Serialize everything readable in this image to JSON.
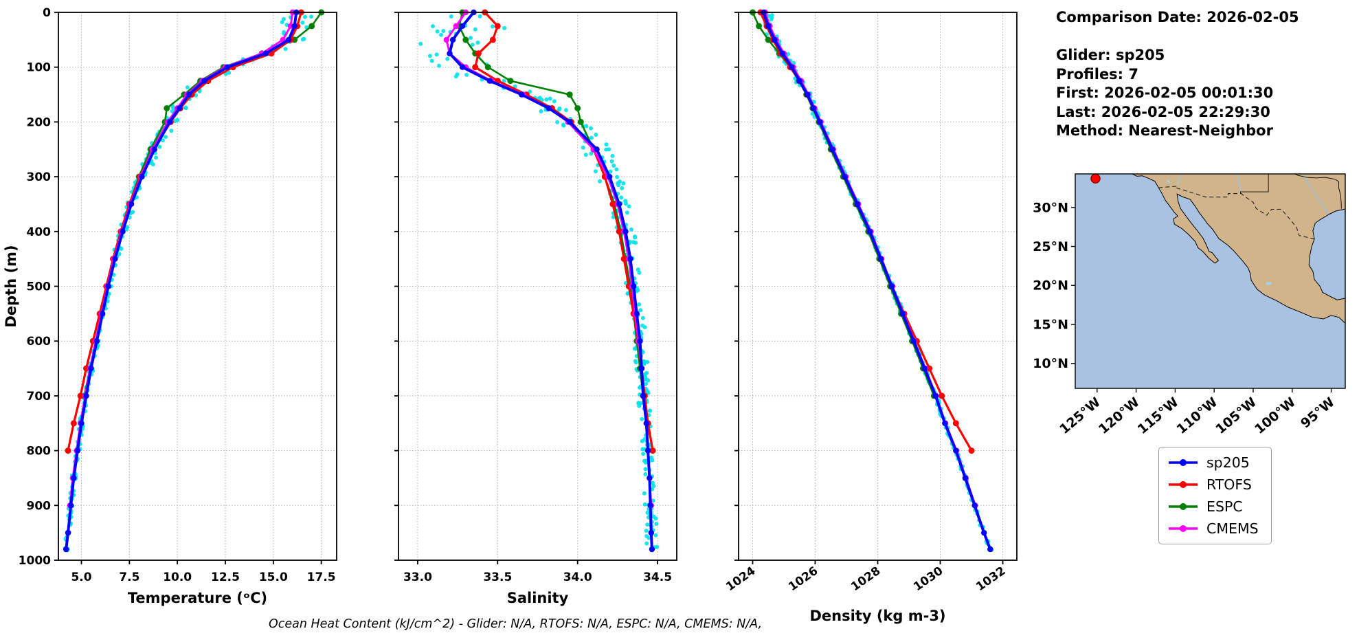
{
  "info_panel": {
    "lines": [
      "Comparison Date: 2026-02-05",
      "",
      "Glider: sp205",
      "Profiles: 7",
      "First: 2026-02-05 00:01:30",
      "Last: 2026-02-05 22:29:30",
      "Method: Nearest-Neighbor"
    ]
  },
  "caption": "Ocean Heat Content (kJ/cm^2) - Glider: N/A,  RTOFS: N/A,  ESPC: N/A,  CMEMS: N/A,",
  "legend": {
    "entries": [
      {
        "label": "sp205",
        "color": "#0000ff"
      },
      {
        "label": "RTOFS",
        "color": "#ff0000"
      },
      {
        "label": "ESPC",
        "color": "#008000"
      },
      {
        "label": "CMEMS",
        "color": "#ff00ff"
      }
    ]
  },
  "depth_axis": {
    "label": "Depth (m)",
    "min": 0,
    "max": 1000,
    "ticks": [
      0,
      100,
      200,
      300,
      400,
      500,
      600,
      700,
      800,
      900,
      1000
    ]
  },
  "depths": [
    0,
    25,
    50,
    75,
    100,
    125,
    150,
    175,
    200,
    250,
    300,
    350,
    400,
    450,
    500,
    550,
    600,
    650,
    700,
    750,
    800,
    850,
    900,
    950,
    980
  ],
  "chart_data": [
    {
      "type": "line",
      "xlabel": "Temperature (ᵒC)",
      "ylabel": "Depth (m)",
      "xlim": [
        3.8,
        18.3
      ],
      "ylim": [
        0,
        1000
      ],
      "grid": true,
      "xticks": [
        5.0,
        7.5,
        10.0,
        12.5,
        15.0,
        17.5
      ],
      "xtick_labels": [
        "5.0",
        "7.5",
        "10.0",
        "12.5",
        "15.0",
        "17.5"
      ],
      "rotate_xticks": false,
      "scatter": {
        "name": "sp205-raw",
        "color": "#00e1ea",
        "amp_surface": 0.9,
        "amp_deep": 0.1,
        "decay": 180
      },
      "series": [
        {
          "name": "ESPC",
          "color": "#008000",
          "lw": 2.6,
          "ms": 4.5,
          "values": [
            17.5,
            17.0,
            16.1,
            14.4,
            12.4,
            11.2,
            10.35,
            9.45,
            9.35,
            8.6,
            8.0,
            7.5,
            7.1,
            6.7,
            6.35,
            6.05,
            5.75,
            5.45,
            5.15,
            null,
            null,
            null,
            null,
            null,
            null
          ]
        },
        {
          "name": "RTOFS",
          "color": "#ff0000",
          "lw": 3.2,
          "ms": 4.5,
          "values": [
            16.45,
            16.25,
            15.9,
            14.9,
            12.9,
            11.6,
            10.75,
            10.15,
            9.65,
            8.75,
            8.05,
            7.5,
            7.05,
            6.65,
            6.3,
            5.95,
            5.6,
            5.25,
            4.95,
            4.6,
            4.3,
            null,
            null,
            null,
            null
          ]
        },
        {
          "name": "CMEMS",
          "color": "#ff00ff",
          "lw": 3.0,
          "ms": 4.2,
          "values": [
            16.0,
            15.9,
            15.5,
            14.4,
            12.5,
            11.3,
            10.5,
            10.0,
            9.5,
            8.7,
            8.1,
            7.55,
            7.1,
            6.7,
            6.35,
            6.05,
            5.75,
            5.45,
            5.2,
            4.95,
            4.75,
            4.55,
            4.4,
            null,
            null
          ]
        },
        {
          "name": "sp205",
          "color": "#0000ff",
          "lw": 4.0,
          "ms": 4.2,
          "values": [
            16.2,
            16.1,
            15.8,
            14.6,
            12.6,
            11.4,
            10.6,
            10.1,
            9.6,
            8.8,
            8.15,
            7.6,
            7.15,
            6.75,
            6.4,
            6.1,
            5.8,
            5.5,
            5.25,
            5.0,
            4.8,
            4.6,
            4.45,
            4.3,
            4.2
          ]
        }
      ]
    },
    {
      "type": "line",
      "xlabel": "Salinity",
      "xlim": [
        32.88,
        34.62
      ],
      "ylim": [
        0,
        1000
      ],
      "grid": true,
      "xticks": [
        33.0,
        33.5,
        34.0,
        34.5
      ],
      "xtick_labels": [
        "33.0",
        "33.5",
        "34.0",
        "34.5"
      ],
      "rotate_xticks": false,
      "scatter": {
        "name": "sp205-raw",
        "color": "#00e1ea",
        "amp_surface": 0.3,
        "amp_deep": 0.035,
        "decay": 150
      },
      "series": [
        {
          "name": "ESPC",
          "color": "#008000",
          "lw": 2.6,
          "ms": 4.5,
          "values": [
            33.28,
            33.26,
            33.3,
            33.36,
            33.44,
            33.58,
            33.95,
            34.0,
            34.02,
            34.1,
            34.17,
            34.23,
            34.27,
            34.3,
            34.33,
            34.35,
            34.37,
            34.39,
            34.41,
            null,
            null,
            null,
            null,
            null,
            null
          ]
        },
        {
          "name": "RTOFS",
          "color": "#ff0000",
          "lw": 3.2,
          "ms": 4.5,
          "values": [
            33.42,
            33.5,
            33.47,
            33.38,
            33.36,
            33.5,
            33.68,
            33.84,
            33.96,
            34.1,
            34.17,
            34.22,
            34.26,
            34.29,
            34.32,
            34.35,
            34.38,
            34.4,
            34.42,
            34.44,
            34.47,
            null,
            null,
            null,
            null
          ]
        },
        {
          "name": "CMEMS",
          "color": "#ff00ff",
          "lw": 3.0,
          "ms": 4.2,
          "values": [
            33.3,
            33.24,
            33.18,
            33.2,
            33.3,
            33.46,
            33.66,
            33.82,
            33.94,
            34.1,
            34.19,
            34.25,
            34.29,
            34.32,
            34.34,
            34.36,
            34.38,
            34.4,
            34.41,
            34.43,
            34.44,
            34.45,
            34.46,
            null,
            null
          ]
        },
        {
          "name": "sp205",
          "color": "#0000ff",
          "lw": 4.0,
          "ms": 4.2,
          "values": [
            33.35,
            33.28,
            33.22,
            33.2,
            33.28,
            33.45,
            33.65,
            33.82,
            33.95,
            34.12,
            34.2,
            34.26,
            34.3,
            34.33,
            34.35,
            34.37,
            34.39,
            34.4,
            34.41,
            34.43,
            34.44,
            34.45,
            34.455,
            34.46,
            34.465
          ]
        }
      ]
    },
    {
      "type": "line",
      "xlabel": "Density (kg m-3)",
      "xlim": [
        1023.55,
        1032.45
      ],
      "ylim": [
        0,
        1000
      ],
      "grid": true,
      "xticks": [
        1024,
        1026,
        1028,
        1030,
        1032
      ],
      "xtick_labels": [
        "1024",
        "1026",
        "1028",
        "1030",
        "1032"
      ],
      "rotate_xticks": true,
      "scatter": {
        "name": "sp205-raw",
        "color": "#00e1ea",
        "amp_surface": 0.22,
        "amp_deep": 0.05,
        "decay": 150
      },
      "series": [
        {
          "name": "ESPC",
          "color": "#008000",
          "lw": 2.6,
          "ms": 4.5,
          "values": [
            1024.0,
            1024.2,
            1024.5,
            1024.85,
            1025.2,
            1025.48,
            1025.72,
            1025.92,
            1026.12,
            1026.5,
            1026.9,
            1027.3,
            1027.7,
            1028.05,
            1028.4,
            1028.75,
            1029.1,
            1029.45,
            1029.8,
            null,
            null,
            null,
            null,
            null,
            null
          ]
        },
        {
          "name": "RTOFS",
          "color": "#ff0000",
          "lw": 3.2,
          "ms": 4.5,
          "values": [
            1024.25,
            1024.45,
            1024.65,
            1024.9,
            1025.2,
            1025.5,
            1025.75,
            1025.95,
            1026.15,
            1026.55,
            1026.95,
            1027.35,
            1027.75,
            1028.1,
            1028.45,
            1028.85,
            1029.25,
            1029.65,
            1030.05,
            1030.5,
            1031.0,
            null,
            null,
            null,
            null
          ]
        },
        {
          "name": "CMEMS",
          "color": "#ff00ff",
          "lw": 3.0,
          "ms": 4.2,
          "values": [
            1024.4,
            1024.55,
            1024.75,
            1025.0,
            1025.3,
            1025.55,
            1025.78,
            1025.98,
            1026.18,
            1026.58,
            1026.98,
            1027.38,
            1027.78,
            1028.12,
            1028.47,
            1028.82,
            1029.17,
            1029.52,
            1029.87,
            1030.17,
            1030.52,
            1030.82,
            1031.12,
            null,
            null
          ]
        },
        {
          "name": "sp205",
          "color": "#0000ff",
          "lw": 4.0,
          "ms": 4.2,
          "values": [
            1024.35,
            1024.5,
            1024.7,
            1024.95,
            1025.25,
            1025.5,
            1025.75,
            1025.95,
            1026.15,
            1026.55,
            1026.95,
            1027.35,
            1027.75,
            1028.1,
            1028.45,
            1028.8,
            1029.15,
            1029.5,
            1029.85,
            1030.15,
            1030.5,
            1030.8,
            1031.1,
            1031.4,
            1031.6
          ]
        }
      ]
    }
  ],
  "map": {
    "extent": {
      "lon_min": -127.8,
      "lon_max": -93.2,
      "lat_min": 6.8,
      "lat_max": 34.3
    },
    "ocean_color": "#a9c2e2",
    "land_color": "#d2b48c",
    "lake_color": "#a8d0e6",
    "marker": {
      "lon": -125.2,
      "lat": 33.7,
      "color": "#ff0000",
      "edge": "#8b0000"
    },
    "lon_ticks": {
      "values": [
        -125,
        -120,
        -115,
        -110,
        -105,
        -100,
        -95
      ],
      "labels": [
        "125°W",
        "120°W",
        "115°W",
        "110°W",
        "105°W",
        "100°W",
        "95°W"
      ]
    },
    "lat_ticks": {
      "values": [
        30,
        25,
        20,
        15,
        10
      ],
      "labels": [
        "30°N",
        "25°N",
        "20°N",
        "15°N",
        "10°N"
      ]
    },
    "land": [
      [
        -120.6,
        34.35
      ],
      [
        -119.9,
        34.0
      ],
      [
        -119.2,
        34.05
      ],
      [
        -118.4,
        33.74
      ],
      [
        -117.6,
        33.35
      ],
      [
        -117.12,
        32.53
      ],
      [
        -116.75,
        31.9
      ],
      [
        -116.25,
        30.9
      ],
      [
        -115.75,
        30.25
      ],
      [
        -115.1,
        29.35
      ],
      [
        -114.65,
        28.9
      ],
      [
        -115.2,
        28.55
      ],
      [
        -115.1,
        27.85
      ],
      [
        -114.15,
        27.3
      ],
      [
        -113.25,
        26.5
      ],
      [
        -112.4,
        25.6
      ],
      [
        -112.1,
        24.85
      ],
      [
        -111.45,
        24.35
      ],
      [
        -110.7,
        23.5
      ],
      [
        -109.9,
        22.85
      ],
      [
        -109.45,
        23.2
      ],
      [
        -110.25,
        24.2
      ],
      [
        -110.65,
        24.35
      ],
      [
        -111.05,
        25.3
      ],
      [
        -111.45,
        26.1
      ],
      [
        -112.3,
        27.2
      ],
      [
        -113.1,
        28.2
      ],
      [
        -113.65,
        28.95
      ],
      [
        -114.3,
        29.85
      ],
      [
        -114.6,
        30.7
      ],
      [
        -114.75,
        31.72
      ],
      [
        -114.0,
        31.35
      ],
      [
        -113.1,
        31.05
      ],
      [
        -112.5,
        30.25
      ],
      [
        -111.9,
        29.3
      ],
      [
        -111.2,
        28.4
      ],
      [
        -110.9,
        27.95
      ],
      [
        -110.2,
        27.2
      ],
      [
        -109.4,
        26.0
      ],
      [
        -108.3,
        25.2
      ],
      [
        -107.5,
        24.45
      ],
      [
        -106.4,
        23.2
      ],
      [
        -105.65,
        22.25
      ],
      [
        -105.35,
        21.45
      ],
      [
        -105.25,
        20.65
      ],
      [
        -104.5,
        19.5
      ],
      [
        -103.5,
        18.75
      ],
      [
        -102.0,
        18.05
      ],
      [
        -100.5,
        17.2
      ],
      [
        -99.0,
        16.6
      ],
      [
        -97.5,
        15.95
      ],
      [
        -96.0,
        15.7
      ],
      [
        -95.0,
        16.15
      ],
      [
        -94.0,
        15.9
      ],
      [
        -93.2,
        15.15
      ],
      [
        -93.2,
        18.35
      ],
      [
        -94.25,
        18.15
      ],
      [
        -95.35,
        18.7
      ],
      [
        -96.1,
        19.1
      ],
      [
        -96.45,
        19.9
      ],
      [
        -97.15,
        20.75
      ],
      [
        -97.35,
        21.8
      ],
      [
        -97.85,
        22.6
      ],
      [
        -97.75,
        23.8
      ],
      [
        -97.5,
        25.0
      ],
      [
        -97.15,
        25.95
      ],
      [
        -97.35,
        27.0
      ],
      [
        -97.05,
        28.0
      ],
      [
        -96.4,
        28.45
      ],
      [
        -95.3,
        29.1
      ],
      [
        -94.4,
        29.55
      ],
      [
        -93.2,
        29.8
      ],
      [
        -93.2,
        34.35
      ]
    ],
    "lakes": [
      [
        [
          -116.05,
          33.5
        ],
        [
          -115.8,
          33.4
        ],
        [
          -115.7,
          33.1
        ],
        [
          -115.95,
          33.25
        ]
      ],
      [
        [
          -103.35,
          20.35
        ],
        [
          -102.75,
          20.4
        ],
        [
          -102.7,
          20.15
        ],
        [
          -103.3,
          20.1
        ]
      ]
    ],
    "rivers": [
      [
        [
          -114.15,
          34.35
        ],
        [
          -114.35,
          34.05
        ],
        [
          -114.5,
          33.6
        ],
        [
          -114.65,
          33.05
        ],
        [
          -114.72,
          32.72
        ]
      ],
      [
        [
          -95.35,
          29.15
        ],
        [
          -96.1,
          30.3
        ],
        [
          -96.9,
          31.5
        ],
        [
          -97.6,
          32.6
        ],
        [
          -98.3,
          33.6
        ],
        [
          -98.6,
          34.35
        ]
      ],
      [
        [
          -106.53,
          31.78
        ],
        [
          -106.75,
          32.7
        ],
        [
          -106.95,
          33.7
        ],
        [
          -107.0,
          34.35
        ]
      ]
    ],
    "state_lines": [
      [
        [
          -103.05,
          34.35
        ],
        [
          -103.05,
          32.0
        ],
        [
          -106.62,
          32.0
        ],
        [
          -106.62,
          31.83
        ]
      ],
      [
        [
          -100.0,
          34.35
        ],
        [
          -99.7,
          34.3
        ],
        [
          -99.2,
          34.1
        ],
        [
          -98.1,
          33.85
        ],
        [
          -96.9,
          33.78
        ],
        [
          -95.8,
          33.86
        ],
        [
          -94.45,
          33.6
        ],
        [
          -94.04,
          33.3
        ],
        [
          -94.04,
          32.5
        ],
        [
          -93.8,
          31.6
        ],
        [
          -93.72,
          30.6
        ],
        [
          -93.7,
          29.85
        ]
      ]
    ],
    "borders": [
      [
        [
          -117.12,
          32.53
        ],
        [
          -116.1,
          32.62
        ],
        [
          -114.72,
          32.72
        ],
        [
          -114.82,
          32.5
        ],
        [
          -111.07,
          31.33
        ],
        [
          -108.21,
          31.33
        ],
        [
          -108.21,
          31.78
        ],
        [
          -106.53,
          31.78
        ],
        [
          -106.25,
          31.55
        ],
        [
          -105.0,
          30.65
        ],
        [
          -104.6,
          29.85
        ],
        [
          -103.25,
          29.0
        ],
        [
          -102.65,
          29.75
        ],
        [
          -101.4,
          29.77
        ],
        [
          -100.25,
          28.45
        ],
        [
          -99.45,
          27.45
        ],
        [
          -99.1,
          26.4
        ],
        [
          -97.15,
          25.95
        ]
      ]
    ]
  }
}
